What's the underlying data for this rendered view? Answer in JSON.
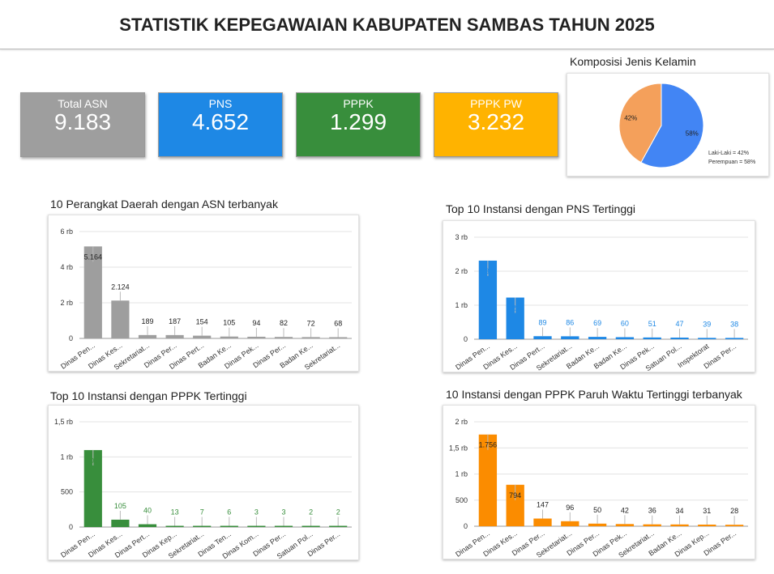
{
  "header": {
    "title": "STATISTIK KEPEGAWAIAN KABUPATEN SAMBAS TAHUN 2025"
  },
  "kpis": [
    {
      "label": "Total ASN",
      "value": "9.183",
      "color": "#9e9e9e"
    },
    {
      "label": "PNS",
      "value": "4.652",
      "color": "#1e88e5"
    },
    {
      "label": "PPPK",
      "value": "1.299",
      "color": "#388e3c"
    },
    {
      "label": "PPPK PW",
      "value": "3.232",
      "color": "#ffb300"
    }
  ],
  "gender": {
    "title": "Komposisi Jenis Kelamin",
    "slices": [
      {
        "name": "Perempuan",
        "value": 58,
        "label": "58%",
        "legend": "Perempuan = 58%",
        "color": "#4285f4"
      },
      {
        "name": "Laki-Laki",
        "value": 42,
        "label": "42%",
        "legend": "Laki-Laki = 42%",
        "color": "#f4a05b"
      }
    ]
  },
  "chart_data": [
    {
      "type": "bar",
      "title": "10 Perangkat Daerah dengan ASN terbanyak",
      "color": "#9e9e9e",
      "labelColor": "#222222",
      "categories": [
        "Dinas Pen...",
        "Dinas Kes...",
        "Sekretariat...",
        "Dinas Per...",
        "Dinas Pert...",
        "Badan Ke...",
        "Dinas Pek...",
        "Dinas Per...",
        "Badan Ke...",
        "Sekretariat..."
      ],
      "values": [
        5164,
        2124,
        189,
        187,
        154,
        105,
        94,
        82,
        72,
        68
      ],
      "data_labels": [
        "5.164",
        "2.124",
        "189",
        "187",
        "154",
        "105",
        "94",
        "82",
        "72",
        "68"
      ],
      "yticks": [
        "0",
        "2 rb",
        "4 rb",
        "6 rb"
      ],
      "ylim": [
        0,
        6000
      ]
    },
    {
      "type": "bar",
      "title": "Top 10 Instansi dengan PNS Tertinggi",
      "color": "#1e88e5",
      "labelColor": "#1e88e5",
      "categories": [
        "Dinas Pen...",
        "Dinas Kes...",
        "Dinas Pert...",
        "Sekretariat...",
        "Badan Ke...",
        "Badan Ke...",
        "Dinas Pek...",
        "Satuan Pol...",
        "Inspektorat",
        "Dinas Per..."
      ],
      "values": [
        2311,
        1225,
        89,
        86,
        69,
        60,
        51,
        47,
        39,
        38
      ],
      "data_labels": [
        "2.311",
        "1.225",
        "89",
        "86",
        "69",
        "60",
        "51",
        "47",
        "39",
        "38"
      ],
      "yticks": [
        "0",
        "1 rb",
        "2 rb",
        "3 rb"
      ],
      "ylim": [
        0,
        3000
      ]
    },
    {
      "type": "bar",
      "title": "Top 10 Instansi dengan PPPK Tertinggi",
      "color": "#388e3c",
      "labelColor": "#388e3c",
      "categories": [
        "Dinas Pen...",
        "Dinas Kes...",
        "Dinas Pert...",
        "Dinas Kep...",
        "Sekretariat...",
        "Dinas Ten...",
        "Dinas Kom...",
        "Dinas Per...",
        "Satuan Pol...",
        "Dinas Per..."
      ],
      "values": [
        1097,
        105,
        40,
        13,
        7,
        6,
        3,
        3,
        2,
        2
      ],
      "data_labels": [
        "1.097",
        "105",
        "40",
        "13",
        "7",
        "6",
        "3",
        "3",
        "2",
        "2"
      ],
      "yticks": [
        "0",
        "500",
        "1 rb",
        "1,5 rb"
      ],
      "ylim": [
        0,
        1500
      ]
    },
    {
      "type": "bar",
      "title": "10 Instansi dengan PPPK Paruh Waktu Tertinggi terbanyak",
      "color": "#fb8c00",
      "labelColor": "#222222",
      "categories": [
        "Dinas Pen...",
        "Dinas Kes...",
        "Dinas Per...",
        "Sekretariat...",
        "Dinas Per...",
        "Dinas Pek...",
        "Sekretariat...",
        "Badan Ke...",
        "Dinas Kep...",
        "Dinas Per..."
      ],
      "values": [
        1756,
        794,
        147,
        96,
        50,
        42,
        36,
        34,
        31,
        28
      ],
      "data_labels": [
        "1.756",
        "794",
        "147",
        "96",
        "50",
        "42",
        "36",
        "34",
        "31",
        "28"
      ],
      "yticks": [
        "0",
        "500",
        "1 rb",
        "1,5 rb",
        "2 rb"
      ],
      "ylim": [
        0,
        2000
      ]
    }
  ]
}
